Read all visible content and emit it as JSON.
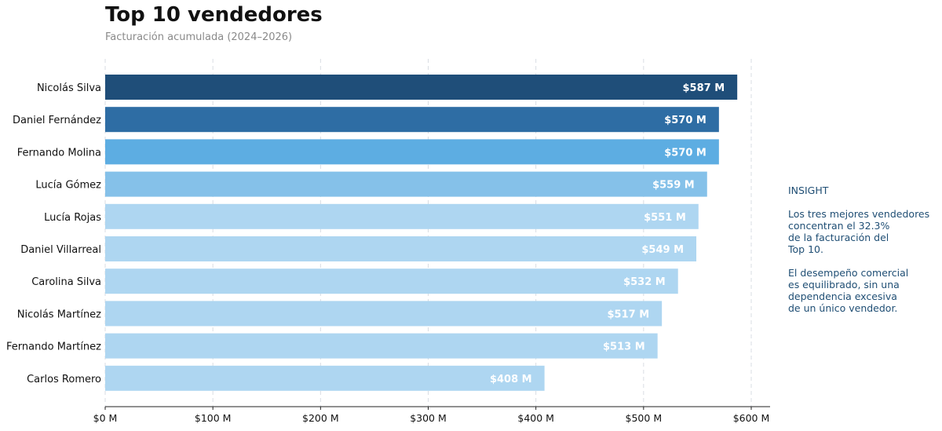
{
  "title": "Top 10 vendedores",
  "subtitle": "Facturación acumulada (2024–2026)",
  "chart_data": {
    "type": "bar",
    "orientation": "horizontal",
    "categories": [
      "Nicolás Silva",
      "Daniel Fernández",
      "Fernando Molina",
      "Lucía Gómez",
      "Lucía Rojas",
      "Daniel Villarreal",
      "Carolina Silva",
      "Nicolás Martínez",
      "Fernando Martínez",
      "Carlos Romero"
    ],
    "values": [
      587,
      570,
      570,
      559,
      551,
      549,
      532,
      517,
      513,
      408
    ],
    "data_labels": [
      "$587 M",
      "$570 M",
      "$570 M",
      "$559 M",
      "$551 M",
      "$549 M",
      "$532 M",
      "$517 M",
      "$513 M",
      "$408 M"
    ],
    "bar_colors": [
      "#1f4e79",
      "#2e6da4",
      "#5dade2",
      "#85c1e9",
      "#aed6f1",
      "#aed6f1",
      "#aed6f1",
      "#aed6f1",
      "#aed6f1",
      "#aed6f1"
    ],
    "x_ticks": [
      0,
      100,
      200,
      300,
      400,
      500,
      600
    ],
    "x_tick_labels": [
      "$0 M",
      "$100 M",
      "$200 M",
      "$300 M",
      "$400 M",
      "$500 M",
      "$600 M"
    ],
    "xlim": [
      0,
      615
    ],
    "grid": "vertical dashed",
    "legend": "none"
  },
  "insight": {
    "heading": "INSIGHT",
    "paragraph1": "Los tres mejores vendedores\nconcentran el 32.3%\nde la facturación del\nTop 10.",
    "paragraph2": "El desempeño comercial\nes equilibrado, sin una\ndependencia excesiva\nde un único vendedor."
  }
}
